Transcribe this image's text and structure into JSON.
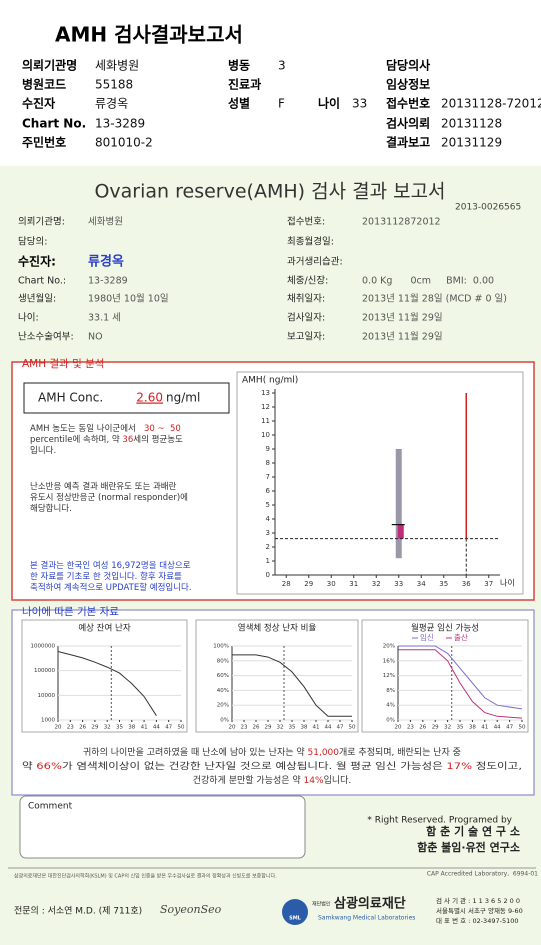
{
  "header": {
    "title": "AMH 검사결과보고서",
    "fields": [
      {
        "label": "의뢰기관명",
        "value": "세화병원"
      },
      {
        "label": "병동",
        "value": "3"
      },
      {
        "label": "담당의사"
      },
      {
        "label": "병원코드",
        "value": "55188"
      },
      {
        "label": "진료과"
      },
      {
        "label": "임상정보"
      },
      {
        "label": "수진자",
        "value": "류경옥"
      },
      {
        "label": "성별",
        "value": "F"
      },
      {
        "label": "나이",
        "value": "33"
      },
      {
        "label": "접수번호",
        "value": "20131128-72012"
      },
      {
        "label": "Chart No.",
        "value": "13-3289"
      },
      {
        "label": "검사의뢰",
        "value": "20131128"
      },
      {
        "label": "주민번호",
        "value": "801010-2"
      },
      {
        "label": "결과보고",
        "value": "20131129"
      }
    ]
  },
  "report": {
    "title": "Ovarian reserve(AMH) 검사 결과 보고서",
    "code": "2013-0026565",
    "left": [
      {
        "label": "의뢰기관명:",
        "value": "세화병원"
      },
      {
        "label": "담당의:"
      },
      {
        "label": "수진자:",
        "value": "류경옥"
      },
      {
        "label": "Chart No.:",
        "value": "13-3289"
      },
      {
        "label": "생년월일:",
        "value": "1980년 10월 10일"
      },
      {
        "label": "나이:",
        "value": "33.1 세"
      },
      {
        "label": "난소수술여부:",
        "value": "NO"
      }
    ],
    "right": [
      {
        "label": "접수번호:",
        "value": "2013112872012"
      },
      {
        "label": "최종월경일:"
      },
      {
        "label": "과거생리습관:"
      },
      {
        "label": "체중/신장:",
        "value": "0.0 Kg      0cm     BMI:  0.00"
      },
      {
        "label": "채취일자:",
        "value": "2013년 11월 28일 (MCD # 0 일)"
      },
      {
        "label": "검사일자:",
        "value": "2013년 11월 29일"
      },
      {
        "label": "보고일자:",
        "value": "2013년 11월 29일"
      }
    ]
  },
  "amh": {
    "section": "AMH 결과 및 분석",
    "conc_label": "AMH Conc.",
    "conc_value": "2.60",
    "conc_unit": "ng/ml",
    "paragraphs": [
      [
        [
          {
            "text": "AMH 농도는 동일 나이군에서   "
          },
          {
            "text": "30 ~  50",
            "color": "#d02020"
          }
        ],
        [
          {
            "text": "percentile에 속하며, 약 "
          },
          {
            "text": "36",
            "color": "#d02020"
          },
          {
            "text": "세의 평균농도"
          }
        ],
        [
          {
            "text": "입니다."
          }
        ]
      ],
      [
        [
          {
            "text": "난소반응 예측 결과 배란유도 또는 과배란"
          }
        ],
        [
          {
            "text": "유도시 정상반응군 (normal responder)에"
          }
        ],
        [
          {
            "text": "해당합니다."
          }
        ]
      ],
      [
        [
          {
            "text": "본 결과는 한국인 여성 16,972명을 대상으로",
            "color": "#2a40c8"
          }
        ],
        [
          {
            "text": "한 자료를 기초로 한 것입니다. 향후 자료를",
            "color": "#2a40c8"
          }
        ],
        [
          {
            "text": "축적하여 계속적으로 UPDATE할 예정입니다.",
            "color": "#2a40c8"
          }
        ]
      ]
    ],
    "chart": {
      "ylabel": "AMH( ng/ml)",
      "xlabel": "나이",
      "xlim": [
        27.5,
        37.5
      ],
      "xticks": [
        28,
        29,
        30,
        31,
        32,
        33,
        34,
        35,
        36,
        37
      ],
      "ylim": [
        0,
        13
      ],
      "yticks": [
        0,
        1,
        2,
        3,
        4,
        5,
        6,
        7,
        8,
        9,
        10,
        11,
        12,
        13
      ],
      "range": {
        "x": 33,
        "low": 1.2,
        "high": 9
      },
      "result": {
        "x": 33,
        "value": 2.6,
        "top": 3.6
      },
      "mean_age": 36
    }
  },
  "age": {
    "section": "나이에 따른 기본 자료",
    "charts": [
      {
        "title": "예상 잔여 난자",
        "log": true,
        "xlim": [
          20,
          50
        ],
        "xticks": [
          20,
          23,
          26,
          29,
          32,
          35,
          38,
          41,
          44,
          47,
          50
        ],
        "ylim": [
          1000,
          1000000
        ],
        "yticks": [
          1000,
          10000,
          100000,
          1000000
        ],
        "marker_x": 33,
        "series": [
          {
            "color": "#333333",
            "x": [
              20,
              23,
              26,
              29,
              32,
              35,
              38,
              41,
              44
            ],
            "values": [
              600000,
              450000,
              330000,
              220000,
              140000,
              80000,
              30000,
              9000,
              1500
            ]
          }
        ]
      },
      {
        "title": "염색체 정상 난자 비율",
        "xlim": [
          20,
          50
        ],
        "xticks": [
          20,
          23,
          26,
          29,
          32,
          35,
          38,
          41,
          44,
          47,
          50
        ],
        "ylim": [
          0,
          100
        ],
        "yticks": [
          {
            "value": 0,
            "label": "0%"
          },
          {
            "value": 20,
            "label": "20%"
          },
          {
            "value": 40,
            "label": "40%"
          },
          {
            "value": 60,
            "label": "60%"
          },
          {
            "value": 80,
            "label": "80%"
          },
          {
            "value": 100,
            "label": "100%"
          }
        ],
        "marker_x": 33,
        "series": [
          {
            "color": "#333333",
            "x": [
              20,
              26,
              29,
              32,
              35,
              38,
              41,
              44,
              47,
              50
            ],
            "values": [
              88,
              88,
              85,
              78,
              65,
              45,
              20,
              5,
              5,
              5
            ]
          }
        ]
      },
      {
        "title": "월평균 임신 가능성",
        "xlim": [
          20,
          50
        ],
        "xticks": [
          20,
          23,
          26,
          29,
          32,
          35,
          38,
          41,
          44,
          47,
          50
        ],
        "ylim": [
          0,
          20
        ],
        "yticks": [
          {
            "value": 0,
            "label": "0%"
          },
          {
            "value": 4,
            "label": "4%"
          },
          {
            "value": 8,
            "label": "8%"
          },
          {
            "value": 12,
            "label": "12%"
          },
          {
            "value": 16,
            "label": "16%"
          },
          {
            "value": 20,
            "label": "20%"
          }
        ],
        "marker_x": 33,
        "series": [
          {
            "name": "임신",
            "color": "#7a6fd0",
            "x": [
              20,
              29,
              32,
              35,
              38,
              41,
              44,
              50
            ],
            "values": [
              20,
              20,
              18,
              14,
              10,
              6,
              4,
              3
            ]
          },
          {
            "name": "출산",
            "color": "#c0307a",
            "x": [
              20,
              29,
              32,
              35,
              38,
              41,
              44,
              50
            ],
            "values": [
              19,
              19,
              16,
              10,
              5,
              2,
              1,
              0.5
            ]
          }
        ]
      }
    ],
    "summary": [
      [
        {
          "text": "귀하의 나이만을 고려하였을 때 난소에 남아 있는 난자는 약 "
        },
        {
          "text": "51,000",
          "color": "#d02020"
        },
        {
          "text": "개로 추정되며, 배란되는 난자 중"
        }
      ],
      [
        {
          "text": "약 "
        },
        {
          "text": "66%",
          "color": "#d02020"
        },
        {
          "text": "가 염색체이상이 없는 건강한 난자일 것으로 예상됩니다. 월 평균 임신 가능성은 "
        },
        {
          "text": "17%",
          "color": "#d02020"
        },
        {
          "text": " 정도이고,"
        }
      ],
      [
        {
          "text": "건강하게 분만할 가능성은 약 "
        },
        {
          "text": "14%",
          "color": "#d02020"
        },
        {
          "text": "입니다."
        }
      ]
    ]
  },
  "comment": {
    "label": "Comment"
  },
  "credits": {
    "rights": "* Right Reserved. Programed by",
    "lab1": "함 춘 기 술 연 구 소",
    "lab2": "함춘 불임·유전 연구소"
  },
  "footer": {
    "notice": "삼광의료재단은 대한진단검사의학회(KSLM) 및 CAP의 신임 인증을 받은 우수검사실로 결과의 정확성과 신빙도를 보증합니다.",
    "cap": "CAP Accredited Laboratory,  6994-01",
    "doctor": "전문의 : 서소연 M.D. (제 711호)",
    "signature": "SoyeonSeo",
    "logo_mark": "SML",
    "logo_small": "재단법인",
    "logo_name": "삼광의료재단",
    "logo_en": "Samkwang Medical Laboratories",
    "org_no": "검 사 기 관 : 1 1 3 6 5 2 0 0",
    "address": "서울특별시 서초구 양재동 9-60",
    "phone": "대 표 번 호 : 02-3497-5100"
  }
}
